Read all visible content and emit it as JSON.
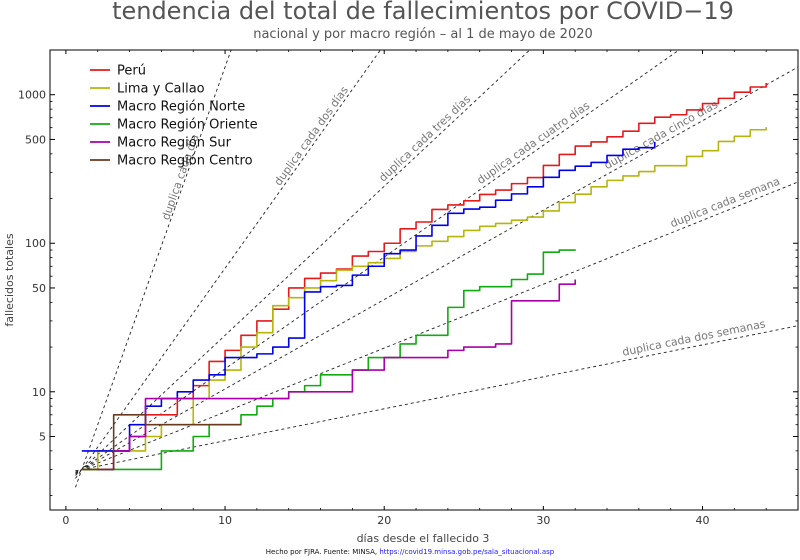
{
  "chart_data": {
    "type": "line",
    "title": "tendencia del total de fallecimientos por COVID−19",
    "subtitle": "nacional y por macro región – al 1 de mayo de 2020",
    "xlabel": "días desde el fallecido 3",
    "ylabel": "fallecidos totales",
    "xlim": [
      -1,
      46
    ],
    "ylim": [
      1.6,
      2000
    ],
    "yscale": "log",
    "xticks": [
      0,
      10,
      20,
      30,
      40
    ],
    "yticks": [
      5,
      10,
      50,
      100,
      500,
      1000
    ],
    "legend_position": "top-left",
    "grid": false,
    "series": [
      {
        "name": "Perú",
        "color": "#e41a1c",
        "x": [
          1,
          2,
          3,
          4,
          5,
          6,
          7,
          8,
          9,
          10,
          11,
          12,
          13,
          14,
          15,
          16,
          17,
          18,
          19,
          20,
          21,
          22,
          23,
          24,
          25,
          26,
          27,
          28,
          29,
          30,
          31,
          32,
          33,
          34,
          35,
          36,
          37,
          38,
          39,
          40,
          41,
          42,
          43,
          44
        ],
        "y": [
          3,
          3,
          4,
          5,
          7,
          7,
          9,
          11,
          16,
          19,
          24,
          30,
          36,
          50,
          58,
          63,
          67,
          82,
          88,
          100,
          125,
          139,
          169,
          181,
          193,
          213,
          228,
          252,
          277,
          334,
          396,
          451,
          481,
          521,
          568,
          642,
          706,
          733,
          790,
          872,
          945,
          1040,
          1127,
          1200
        ]
      },
      {
        "name": "Lima y Callao",
        "color": "#b5b50b",
        "x": [
          1,
          2,
          3,
          4,
          5,
          6,
          7,
          8,
          9,
          10,
          11,
          12,
          13,
          14,
          15,
          16,
          17,
          18,
          19,
          20,
          21,
          22,
          23,
          24,
          25,
          26,
          27,
          28,
          29,
          30,
          31,
          32,
          33,
          34,
          35,
          36,
          37,
          38,
          39,
          40,
          41,
          42,
          43,
          44
        ],
        "y": [
          3,
          4,
          4,
          4,
          5,
          6,
          6,
          9,
          12,
          14,
          20,
          25,
          38,
          43,
          50,
          56,
          66,
          70,
          74,
          79,
          88,
          96,
          103,
          111,
          122,
          130,
          136,
          143,
          150,
          165,
          188,
          214,
          240,
          265,
          284,
          304,
          333,
          333,
          384,
          420,
          485,
          525,
          581,
          605
        ]
      },
      {
        "name": "Macro Región Norte",
        "color": "#0000ee",
        "x": [
          1,
          2,
          3,
          4,
          5,
          6,
          7,
          8,
          9,
          10,
          11,
          12,
          13,
          14,
          15,
          16,
          17,
          18,
          19,
          20,
          21,
          22,
          23,
          24,
          25,
          26,
          27,
          28,
          29,
          30,
          31,
          32,
          33,
          34,
          35,
          36,
          37
        ],
        "y": [
          4,
          4,
          4,
          6,
          8,
          9,
          10,
          12,
          13,
          17,
          17,
          18,
          20,
          23,
          47,
          51,
          52,
          61,
          70,
          85,
          90,
          112,
          132,
          159,
          170,
          175,
          195,
          215,
          240,
          278,
          310,
          330,
          350,
          390,
          430,
          440,
          480
        ]
      },
      {
        "name": "Macro Región Oriente",
        "color": "#11aa11",
        "x": [
          1,
          2,
          3,
          4,
          5,
          6,
          7,
          8,
          9,
          10,
          11,
          12,
          13,
          14,
          15,
          16,
          17,
          18,
          19,
          20,
          21,
          22,
          23,
          24,
          25,
          26,
          27,
          28,
          29,
          30,
          31,
          32
        ],
        "y": [
          3,
          3,
          3,
          3,
          3,
          4,
          4,
          5,
          6,
          6,
          7,
          8,
          9,
          10,
          11,
          13,
          13,
          14,
          17,
          17,
          21,
          24,
          24,
          37,
          48,
          51,
          51,
          57,
          62,
          87,
          90,
          91
        ]
      },
      {
        "name": "Macro Región Sur",
        "color": "#aa00aa",
        "x": [
          2,
          3,
          4,
          5,
          6,
          7,
          8,
          9,
          10,
          11,
          12,
          13,
          14,
          15,
          16,
          17,
          18,
          19,
          20,
          21,
          22,
          23,
          24,
          25,
          26,
          27,
          28,
          29,
          30,
          31,
          32
        ],
        "y": [
          3,
          4,
          5,
          9,
          9,
          9,
          9,
          9,
          9,
          9,
          9,
          9,
          10,
          10,
          10,
          10,
          14,
          14,
          17,
          17,
          17,
          17,
          19,
          20,
          20,
          21,
          41,
          41,
          41,
          53,
          57
        ]
      },
      {
        "name": "Macro Región Centro",
        "color": "#6b3a1c",
        "x": [
          1,
          2,
          3,
          4,
          5,
          6,
          7,
          8,
          9,
          10,
          11
        ],
        "y": [
          3,
          3,
          7,
          7,
          6,
          6,
          6,
          6,
          6,
          6,
          6
        ]
      }
    ],
    "reference_lines": [
      {
        "label": "duplica cada día",
        "doubling_days": 1
      },
      {
        "label": "duplica cada dos días",
        "doubling_days": 2
      },
      {
        "label": "duplica cada tres días",
        "doubling_days": 3
      },
      {
        "label": "duplica cada cuatro días",
        "doubling_days": 4
      },
      {
        "label": "duplica cada cinco días",
        "doubling_days": 5
      },
      {
        "label": "duplica cada semana",
        "doubling_days": 7
      },
      {
        "label": "duplica cada dos semanas",
        "doubling_days": 14
      }
    ]
  },
  "footer": {
    "credit": "Hecho por FJRA. Fuente: MINSA, ",
    "url": "https://covid19.minsa.gob.pe/sala_situacional.asp"
  }
}
